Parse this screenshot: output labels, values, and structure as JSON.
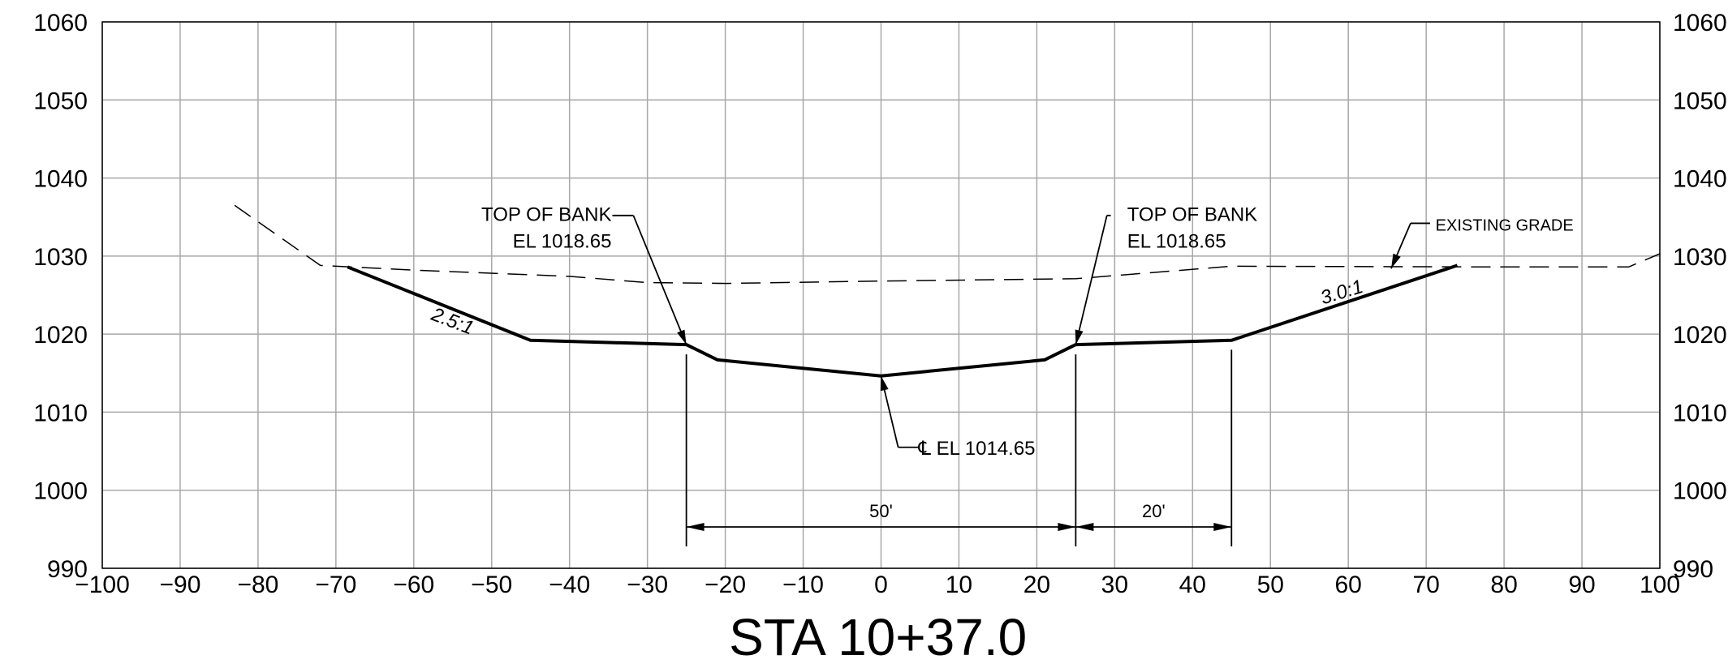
{
  "chart_data": {
    "type": "line",
    "title": "STA 10+37.0",
    "xlabel": "",
    "ylabel": "",
    "xlim": [
      -100,
      100
    ],
    "ylim": [
      990,
      1060
    ],
    "grid": true,
    "x_ticks": [
      -100,
      -90,
      -80,
      -70,
      -60,
      -50,
      -40,
      -30,
      -20,
      -10,
      0,
      10,
      20,
      30,
      40,
      50,
      60,
      70,
      80,
      90,
      100
    ],
    "x_tick_labels": [
      "−100",
      "−90",
      "−80",
      "−70",
      "−60",
      "−50",
      "−40",
      "−30",
      "−20",
      "−10",
      "0",
      "10",
      "20",
      "30",
      "40",
      "50",
      "60",
      "70",
      "80",
      "90",
      "100"
    ],
    "y_ticks": [
      990,
      1000,
      1010,
      1020,
      1030,
      1040,
      1050,
      1060
    ],
    "y_tick_labels": [
      "990",
      "1000",
      "1010",
      "1020",
      "1030",
      "1040",
      "1050",
      "1060"
    ],
    "series": [
      {
        "style": "solid-bold",
        "points": [
          [
            -68.5,
            1028.6
          ],
          [
            -45,
            1019.2
          ],
          [
            -25,
            1018.65
          ],
          [
            -21,
            1016.7
          ],
          [
            0,
            1014.65
          ],
          [
            21,
            1016.7
          ],
          [
            25,
            1018.65
          ],
          [
            45,
            1019.2
          ],
          [
            74,
            1028.8
          ]
        ]
      },
      {
        "name": "EXISTING GRADE",
        "style": "dashed",
        "points": [
          [
            -83,
            1036.5
          ],
          [
            -72,
            1028.8
          ],
          [
            -60,
            1028.2
          ],
          [
            -40,
            1027.4
          ],
          [
            -30,
            1026.6
          ],
          [
            -20,
            1026.5
          ],
          [
            0,
            1026.8
          ],
          [
            25,
            1027.1
          ],
          [
            45,
            1028.7
          ],
          [
            80,
            1028.6
          ],
          [
            96,
            1028.6
          ],
          [
            100,
            1030.3
          ]
        ]
      }
    ],
    "annotations": {
      "left_bank_line1": "TOP OF BANK",
      "left_bank_line2": "EL 1018.65",
      "right_bank_line1": "TOP OF BANK",
      "right_bank_line2": "EL 1018.65",
      "centerline": "℄ EL 1014.65",
      "existing_grade": "EXISTING  GRADE",
      "left_slope": "2.5:1",
      "right_slope": "3.0:1",
      "dim_bottom_width": "50'",
      "dim_bench_width": "20'"
    }
  }
}
